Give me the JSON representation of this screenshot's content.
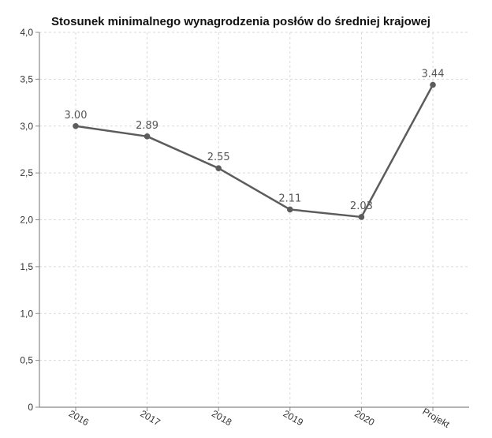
{
  "chart_data": {
    "type": "line",
    "title": "Stosunek minimalnego wynagrodzenia posłów do średniej krajowej",
    "categories": [
      "2016",
      "2017",
      "2018",
      "2019",
      "2020",
      "Projekt"
    ],
    "series": [
      {
        "values": [
          3.0,
          2.89,
          2.55,
          2.11,
          2.03,
          3.44
        ]
      }
    ],
    "data_labels": [
      "3.00",
      "2.89",
      "2.55",
      "2.11",
      "2.03",
      "3.44"
    ],
    "y_ticks": [
      "0",
      "0,5",
      "1,0",
      "1,5",
      "2,0",
      "2,5",
      "3,0",
      "3,5",
      "4,0"
    ],
    "ylim": [
      0,
      4
    ],
    "grid": true,
    "line_color": "#5c5c5c"
  }
}
